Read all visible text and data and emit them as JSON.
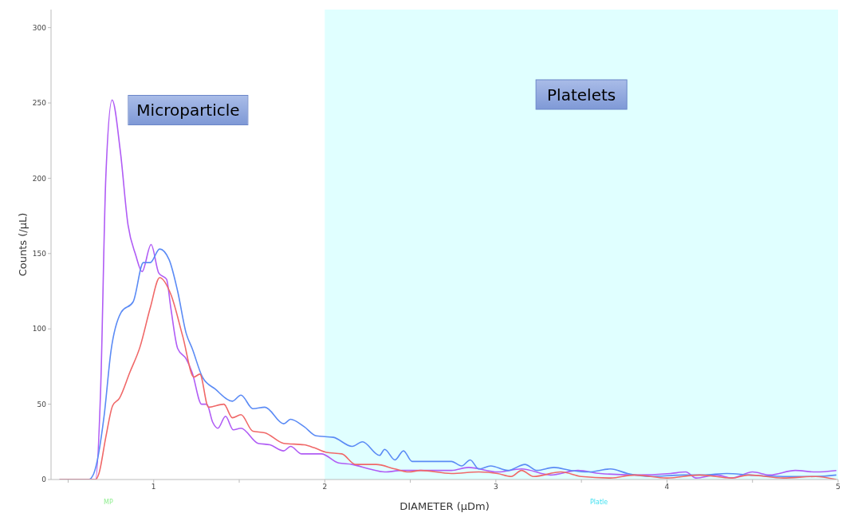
{
  "chart_data": {
    "type": "line",
    "xlabel": "DIAMETER (µDm)",
    "ylabel": "Counts (/µL)",
    "xlim": [
      0.4,
      5
    ],
    "ylim": [
      0,
      312
    ],
    "xticks": [
      {
        "value": 0.5,
        "label": null
      },
      1,
      {
        "value": 1.5,
        "label": null
      },
      2,
      {
        "value": 2.5,
        "label": null
      },
      3,
      {
        "value": 3.5,
        "label": null
      },
      4,
      {
        "value": 4.5,
        "label": null
      },
      5
    ],
    "yticks": [
      0,
      50,
      100,
      150,
      200,
      250,
      300
    ],
    "grid": false,
    "legend": false,
    "marker": "none",
    "line_style": "solid",
    "bands": [
      {
        "axis": "x",
        "from": 2,
        "to": 5,
        "label": "Platelets",
        "color": "#e0ffff"
      }
    ],
    "annotations": [
      "Microparticle",
      "MP",
      "Platle"
    ],
    "series": [
      {
        "type": "line",
        "color": "#b05cf5",
        "x": [
          0.45,
          0.66,
          0.69,
          0.72,
          0.757,
          0.805,
          0.85,
          0.895,
          0.932,
          0.985,
          1.03,
          1.075,
          1.1,
          1.14,
          1.19,
          1.225,
          1.28,
          1.31,
          1.345,
          1.375,
          1.42,
          1.465,
          1.51,
          1.61,
          1.68,
          1.76,
          1.8,
          1.865,
          1.98,
          2.08,
          2.16,
          2.26,
          2.35,
          2.45,
          2.59,
          2.74,
          2.84,
          3.01,
          3.15,
          3.32,
          3.48,
          3.61,
          3.81,
          4.02,
          4.11,
          4.17,
          4.29,
          4.38,
          4.5,
          4.6,
          4.75,
          4.87,
          4.99
        ],
        "values": [
          0,
          0,
          60,
          200,
          252,
          218,
          169,
          149,
          138,
          156,
          137,
          133,
          114,
          87,
          80,
          71,
          50,
          50,
          38,
          34,
          42,
          33,
          34,
          24,
          23,
          19,
          22,
          17,
          17,
          11,
          10,
          7,
          5,
          6,
          6,
          6,
          8,
          5,
          7,
          3,
          6,
          4,
          3,
          4,
          5,
          1,
          3,
          1,
          5,
          3,
          6,
          5,
          6
        ]
      },
      {
        "type": "line",
        "color": "#5b8bf5",
        "x": [
          0.45,
          0.62,
          0.65,
          0.71,
          0.75,
          0.81,
          0.88,
          0.94,
          0.98,
          1.035,
          1.09,
          1.14,
          1.19,
          1.225,
          1.285,
          1.36,
          1.46,
          1.51,
          1.58,
          1.65,
          1.76,
          1.8,
          1.88,
          1.95,
          2.05,
          2.16,
          2.22,
          2.32,
          2.35,
          2.41,
          2.46,
          2.51,
          2.74,
          2.8,
          2.85,
          2.9,
          2.97,
          3.07,
          3.17,
          3.24,
          3.34,
          3.44,
          3.54,
          3.67,
          3.77,
          3.9,
          4.1,
          4.21,
          4.35,
          4.48,
          4.68,
          4.87,
          4.99
        ],
        "values": [
          0,
          0,
          4,
          42,
          85,
          111,
          118,
          144,
          144,
          153,
          146,
          125,
          97,
          87,
          68,
          60,
          52,
          56,
          47,
          48,
          37,
          40,
          35,
          29,
          28,
          22,
          25,
          16,
          20,
          13,
          19,
          12,
          12,
          9,
          13,
          7,
          9,
          6,
          10,
          6,
          8,
          6,
          5,
          7,
          4,
          2,
          3,
          3,
          4,
          3,
          2,
          2,
          3
        ]
      },
      {
        "type": "line",
        "color": "#f06868",
        "x": [
          0.45,
          0.66,
          0.68,
          0.72,
          0.76,
          0.8,
          0.86,
          0.92,
          0.98,
          1.035,
          1.1,
          1.17,
          1.235,
          1.27,
          1.32,
          1.41,
          1.46,
          1.51,
          1.58,
          1.65,
          1.76,
          1.88,
          1.94,
          2.01,
          2.1,
          2.18,
          2.3,
          2.41,
          2.49,
          2.56,
          2.74,
          2.9,
          3.01,
          3.09,
          3.15,
          3.22,
          3.38,
          3.5,
          3.67,
          3.81,
          4,
          4.19,
          4.38,
          4.48,
          4.68,
          4.87,
          4.99
        ],
        "values": [
          0,
          0,
          4,
          28,
          49,
          54,
          71,
          88,
          114,
          134,
          123,
          95,
          68,
          70,
          48,
          50,
          41,
          43,
          32,
          31,
          24,
          23,
          21,
          18,
          17,
          10,
          10,
          7,
          5,
          6,
          4,
          5,
          4,
          2,
          6,
          2,
          5,
          2,
          1,
          3,
          1,
          3,
          1,
          3,
          1,
          2,
          0
        ]
      }
    ]
  }
}
